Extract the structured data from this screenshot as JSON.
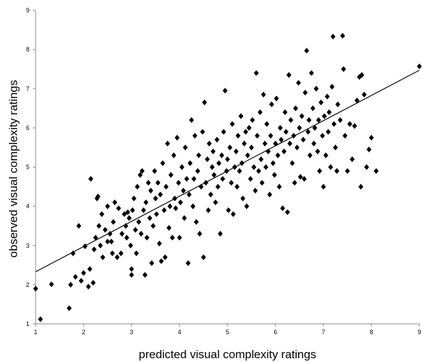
{
  "chart_data": {
    "type": "scatter",
    "title": "",
    "xlabel": "predicted visual complexity ratings",
    "ylabel": "observed visual complexity ratings",
    "xlim": [
      1,
      9
    ],
    "ylim": [
      1,
      9
    ],
    "x_ticks": [
      "1",
      "2",
      "3",
      "4",
      "5",
      "6",
      "7",
      "8",
      "9"
    ],
    "y_ticks": [
      "1",
      "2",
      "3",
      "4",
      "5",
      "6",
      "7",
      "8",
      "9"
    ],
    "grid": false,
    "legend": "none",
    "marker": "diamond",
    "colors": {
      "marker": "#000000",
      "axis": "#888888",
      "trendline": "#000000"
    },
    "trendline": {
      "type": "linear",
      "from": [
        1,
        2.33
      ],
      "to": [
        9,
        7.47
      ]
    },
    "series": [
      {
        "points": [
          [
            1.0,
            1.9
          ],
          [
            1.1,
            1.12
          ],
          [
            1.33,
            2.01
          ],
          [
            1.7,
            1.4
          ],
          [
            1.73,
            2.0
          ],
          [
            1.78,
            2.8
          ],
          [
            1.83,
            2.2
          ],
          [
            1.9,
            3.5
          ],
          [
            1.95,
            2.1
          ],
          [
            2.0,
            2.3
          ],
          [
            2.03,
            2.98
          ],
          [
            2.1,
            1.95
          ],
          [
            2.13,
            2.4
          ],
          [
            2.15,
            4.7
          ],
          [
            2.2,
            2.05
          ],
          [
            2.22,
            2.9
          ],
          [
            2.25,
            3.2
          ],
          [
            2.28,
            4.2
          ],
          [
            2.3,
            4.25
          ],
          [
            2.32,
            3.5
          ],
          [
            2.35,
            3.0
          ],
          [
            2.38,
            3.8
          ],
          [
            2.4,
            2.7
          ],
          [
            2.45,
            3.4
          ],
          [
            2.5,
            3.1
          ],
          [
            2.5,
            4.0
          ],
          [
            2.55,
            3.3
          ],
          [
            2.58,
            3.1
          ],
          [
            2.6,
            2.8
          ],
          [
            2.62,
            3.6
          ],
          [
            2.65,
            4.1
          ],
          [
            2.7,
            2.7
          ],
          [
            2.73,
            3.95
          ],
          [
            2.78,
            2.8
          ],
          [
            2.8,
            3.3
          ],
          [
            2.85,
            3.8
          ],
          [
            2.88,
            3.5
          ],
          [
            2.9,
            3.2
          ],
          [
            2.92,
            3.85
          ],
          [
            2.95,
            3.7
          ],
          [
            2.98,
            3.0
          ],
          [
            3.0,
            2.25
          ],
          [
            3.0,
            2.4
          ],
          [
            3.02,
            3.9
          ],
          [
            3.05,
            4.2
          ],
          [
            3.08,
            3.4
          ],
          [
            3.1,
            2.8
          ],
          [
            3.12,
            4.5
          ],
          [
            3.15,
            3.6
          ],
          [
            3.18,
            4.8
          ],
          [
            3.2,
            3.3
          ],
          [
            3.22,
            4.9
          ],
          [
            3.25,
            3.9
          ],
          [
            3.28,
            2.25
          ],
          [
            3.3,
            4.1
          ],
          [
            3.32,
            3.2
          ],
          [
            3.35,
            4.6
          ],
          [
            3.38,
            3.7
          ],
          [
            3.4,
            4.4
          ],
          [
            3.42,
            2.55
          ],
          [
            3.45,
            3.5
          ],
          [
            3.48,
            4.9
          ],
          [
            3.5,
            4.2
          ],
          [
            3.52,
            3.8
          ],
          [
            3.55,
            4.6
          ],
          [
            3.58,
            3.05
          ],
          [
            3.6,
            4.3
          ],
          [
            3.62,
            2.6
          ],
          [
            3.65,
            5.1
          ],
          [
            3.68,
            3.9
          ],
          [
            3.7,
            2.7
          ],
          [
            3.72,
            4.5
          ],
          [
            3.75,
            5.6
          ],
          [
            3.78,
            3.45
          ],
          [
            3.8,
            4.0
          ],
          [
            3.82,
            4.8
          ],
          [
            3.85,
            3.2
          ],
          [
            3.88,
            5.3
          ],
          [
            3.9,
            4.2
          ],
          [
            3.92,
            3.95
          ],
          [
            3.95,
            5.75
          ],
          [
            3.98,
            4.6
          ],
          [
            4.0,
            3.2
          ],
          [
            4.02,
            4.1
          ],
          [
            4.05,
            5.0
          ],
          [
            4.08,
            4.4
          ],
          [
            4.1,
            3.7
          ],
          [
            4.12,
            5.5
          ],
          [
            4.15,
            4.7
          ],
          [
            4.18,
            2.55
          ],
          [
            4.2,
            4.3
          ],
          [
            4.22,
            5.1
          ],
          [
            4.25,
            6.2
          ],
          [
            4.28,
            4.0
          ],
          [
            4.3,
            4.7
          ],
          [
            4.32,
            5.8
          ],
          [
            4.35,
            3.6
          ],
          [
            4.38,
            4.9
          ],
          [
            4.4,
            5.3
          ],
          [
            4.42,
            3.3
          ],
          [
            4.45,
            4.5
          ],
          [
            4.48,
            5.9
          ],
          [
            4.5,
            2.7
          ],
          [
            4.52,
            6.65
          ],
          [
            4.55,
            4.6
          ],
          [
            4.58,
            5.2
          ],
          [
            4.6,
            3.9
          ],
          [
            4.62,
            5.6
          ],
          [
            4.65,
            4.3
          ],
          [
            4.68,
            5.0
          ],
          [
            4.7,
            5.4
          ],
          [
            4.72,
            4.8
          ],
          [
            4.75,
            4.1
          ],
          [
            4.78,
            5.7
          ],
          [
            4.8,
            4.5
          ],
          [
            4.82,
            5.1
          ],
          [
            4.85,
            3.3
          ],
          [
            4.88,
            5.3
          ],
          [
            4.9,
            4.7
          ],
          [
            4.92,
            5.9
          ],
          [
            4.95,
            6.95
          ],
          [
            4.98,
            4.9
          ],
          [
            5.0,
            5.2
          ],
          [
            5.02,
            3.9
          ],
          [
            5.05,
            5.5
          ],
          [
            5.08,
            4.6
          ],
          [
            5.1,
            6.1
          ],
          [
            5.12,
            3.8
          ],
          [
            5.15,
            5.0
          ],
          [
            5.18,
            5.4
          ],
          [
            5.2,
            4.5
          ],
          [
            5.22,
            5.8
          ],
          [
            5.25,
            4.9
          ],
          [
            5.28,
            6.3
          ],
          [
            5.3,
            5.1
          ],
          [
            5.32,
            4.2
          ],
          [
            5.35,
            5.6
          ],
          [
            5.38,
            5.9
          ],
          [
            5.4,
            4.0
          ],
          [
            5.42,
            5.3
          ],
          [
            5.45,
            6.0
          ],
          [
            5.48,
            4.7
          ],
          [
            5.5,
            5.5
          ],
          [
            5.52,
            6.2
          ],
          [
            5.55,
            5.0
          ],
          [
            5.58,
            4.4
          ],
          [
            5.6,
            7.4
          ],
          [
            5.62,
            5.8
          ],
          [
            5.65,
            4.9
          ],
          [
            5.68,
            6.4
          ],
          [
            5.7,
            5.2
          ],
          [
            5.72,
            4.6
          ],
          [
            5.75,
            6.85
          ],
          [
            5.78,
            5.6
          ],
          [
            5.8,
            5.0
          ],
          [
            5.82,
            6.1
          ],
          [
            5.85,
            5.4
          ],
          [
            5.88,
            4.3
          ],
          [
            5.9,
            5.8
          ],
          [
            5.92,
            6.6
          ],
          [
            5.95,
            5.1
          ],
          [
            5.98,
            4.8
          ],
          [
            6.0,
            5.6
          ],
          [
            6.02,
            6.75
          ],
          [
            6.05,
            5.3
          ],
          [
            6.08,
            4.5
          ],
          [
            6.1,
            6.0
          ],
          [
            6.12,
            5.7
          ],
          [
            6.15,
            3.95
          ],
          [
            6.18,
            5.4
          ],
          [
            6.2,
            6.4
          ],
          [
            6.22,
            5.9
          ],
          [
            6.25,
            3.85
          ],
          [
            6.28,
            7.35
          ],
          [
            6.3,
            5.6
          ],
          [
            6.32,
            6.2
          ],
          [
            6.35,
            5.1
          ],
          [
            6.38,
            5.8
          ],
          [
            6.4,
            4.6
          ],
          [
            6.42,
            6.5
          ],
          [
            6.45,
            5.5
          ],
          [
            6.48,
            7.15
          ],
          [
            6.5,
            6.0
          ],
          [
            6.52,
            4.75
          ],
          [
            6.55,
            6.3
          ],
          [
            6.58,
            5.7
          ],
          [
            6.6,
            4.7
          ],
          [
            6.62,
            6.9
          ],
          [
            6.65,
            7.97
          ],
          [
            6.68,
            5.9
          ],
          [
            6.7,
            6.2
          ],
          [
            6.72,
            5.3
          ],
          [
            6.75,
            7.4
          ],
          [
            6.78,
            6.5
          ],
          [
            6.8,
            5.6
          ],
          [
            6.82,
            6.0
          ],
          [
            6.85,
            7.0
          ],
          [
            6.88,
            5.4
          ],
          [
            6.9,
            6.2
          ],
          [
            6.92,
            4.9
          ],
          [
            6.95,
            6.65
          ],
          [
            6.98,
            5.8
          ],
          [
            7.0,
            4.5
          ],
          [
            7.02,
            6.3
          ],
          [
            7.05,
            5.3
          ],
          [
            7.08,
            6.8
          ],
          [
            7.1,
            5.9
          ],
          [
            7.12,
            6.4
          ],
          [
            7.15,
            5.0
          ],
          [
            7.18,
            7.05
          ],
          [
            7.2,
            8.33
          ],
          [
            7.22,
            6.1
          ],
          [
            7.25,
            5.5
          ],
          [
            7.28,
            4.9
          ],
          [
            7.3,
            6.6
          ],
          [
            7.35,
            6.2
          ],
          [
            7.4,
            8.35
          ],
          [
            7.42,
            7.5
          ],
          [
            7.45,
            5.8
          ],
          [
            7.5,
            4.9
          ],
          [
            7.55,
            6.1
          ],
          [
            7.6,
            5.2
          ],
          [
            7.65,
            6.05
          ],
          [
            7.7,
            6.7
          ],
          [
            7.75,
            7.3
          ],
          [
            7.78,
            4.5
          ],
          [
            7.8,
            7.35
          ],
          [
            7.85,
            6.85
          ],
          [
            7.9,
            5.0
          ],
          [
            7.95,
            5.45
          ],
          [
            8.0,
            5.75
          ],
          [
            8.1,
            4.9
          ],
          [
            9.0,
            7.57
          ]
        ]
      }
    ]
  }
}
